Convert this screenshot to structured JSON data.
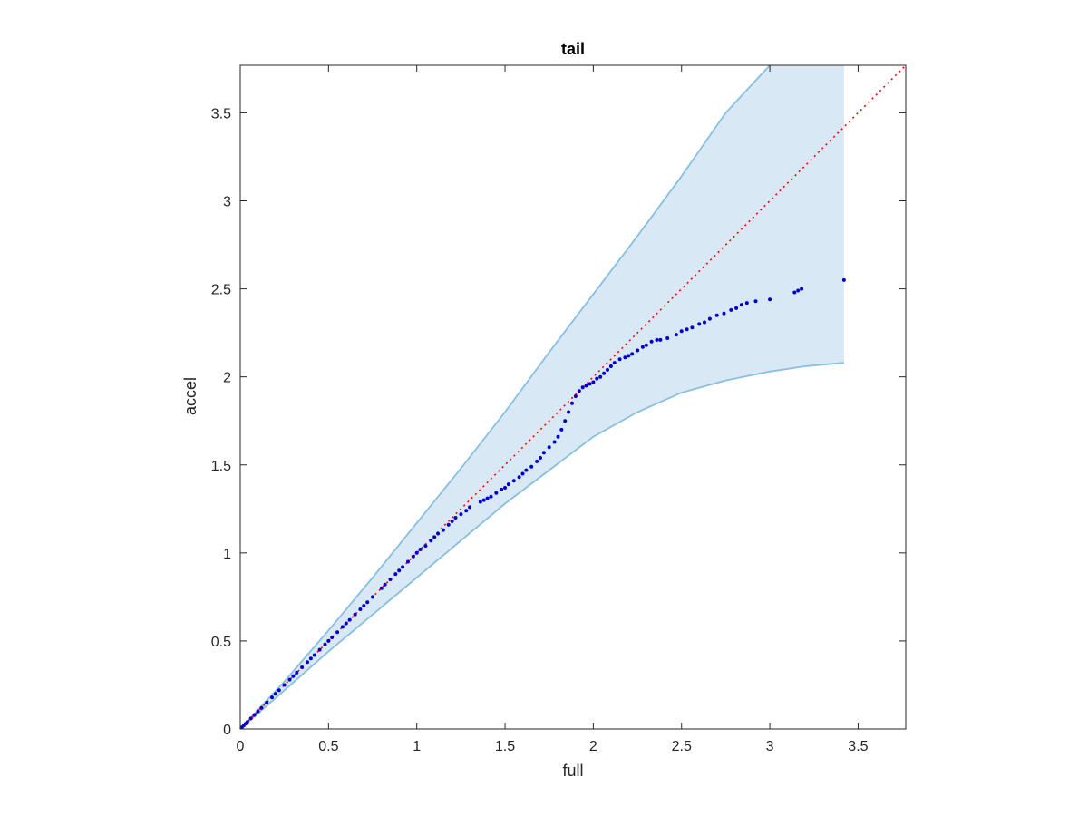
{
  "chart_data": {
    "type": "scatter",
    "title": "tail",
    "xlabel": "full",
    "ylabel": "accel",
    "xlim": [
      0,
      3.77
    ],
    "ylim": [
      0,
      3.77
    ],
    "xticks": [
      0,
      0.5,
      1,
      1.5,
      2,
      2.5,
      3,
      3.5
    ],
    "yticks": [
      0,
      0.5,
      1,
      1.5,
      2,
      2.5,
      3,
      3.5
    ],
    "xtick_labels": [
      "0",
      "0.5",
      "1",
      "1.5",
      "2",
      "2.5",
      "3",
      "3.5"
    ],
    "ytick_labels": [
      "0",
      "0.5",
      "1",
      "1.5",
      "2",
      "2.5",
      "3",
      "3.5"
    ],
    "grid": false,
    "reference_line": {
      "style": "dotted",
      "color": "#ff0000",
      "x": [
        0,
        3.77
      ],
      "y": [
        0,
        3.77
      ]
    },
    "band": {
      "color": "#d8e8f4",
      "edge_color": "#88bfe0",
      "x": [
        0,
        0.25,
        0.5,
        0.75,
        1.0,
        1.25,
        1.5,
        1.75,
        2.0,
        2.25,
        2.5,
        2.75,
        3.0,
        3.2,
        3.42
      ],
      "upper": [
        0,
        0.27,
        0.56,
        0.86,
        1.17,
        1.48,
        1.8,
        2.14,
        2.47,
        2.8,
        3.14,
        3.5,
        3.77,
        3.77,
        3.77
      ],
      "lower": [
        0,
        0.22,
        0.44,
        0.65,
        0.86,
        1.07,
        1.28,
        1.47,
        1.66,
        1.8,
        1.91,
        1.98,
        2.03,
        2.06,
        2.08
      ]
    },
    "series": [
      {
        "color": "#0000cc",
        "x": [
          0.01,
          0.02,
          0.03,
          0.04,
          0.06,
          0.08,
          0.1,
          0.12,
          0.15,
          0.18,
          0.2,
          0.22,
          0.25,
          0.28,
          0.3,
          0.32,
          0.35,
          0.38,
          0.4,
          0.42,
          0.45,
          0.48,
          0.5,
          0.52,
          0.55,
          0.58,
          0.6,
          0.62,
          0.65,
          0.68,
          0.7,
          0.72,
          0.75,
          0.8,
          0.82,
          0.85,
          0.88,
          0.9,
          0.92,
          0.95,
          0.98,
          1.0,
          1.02,
          1.05,
          1.08,
          1.1,
          1.12,
          1.15,
          1.18,
          1.2,
          1.22,
          1.25,
          1.28,
          1.3,
          1.36,
          1.38,
          1.4,
          1.42,
          1.45,
          1.48,
          1.5,
          1.52,
          1.55,
          1.58,
          1.6,
          1.62,
          1.65,
          1.68,
          1.7,
          1.72,
          1.75,
          1.78,
          1.8,
          1.82,
          1.84,
          1.86,
          1.88,
          1.9,
          1.92,
          1.94,
          1.96,
          1.98,
          2.0,
          2.02,
          2.04,
          2.06,
          2.08,
          2.1,
          2.12,
          2.15,
          2.18,
          2.2,
          2.22,
          2.25,
          2.28,
          2.3,
          2.33,
          2.36,
          2.38,
          2.42,
          2.47,
          2.5,
          2.53,
          2.56,
          2.6,
          2.63,
          2.66,
          2.7,
          2.74,
          2.78,
          2.81,
          2.84,
          2.87,
          2.92,
          3.0,
          3.14,
          3.16,
          3.18,
          3.42
        ],
        "y": [
          0.01,
          0.02,
          0.03,
          0.04,
          0.06,
          0.08,
          0.1,
          0.12,
          0.15,
          0.18,
          0.2,
          0.22,
          0.25,
          0.28,
          0.3,
          0.32,
          0.35,
          0.38,
          0.4,
          0.42,
          0.45,
          0.48,
          0.5,
          0.52,
          0.55,
          0.58,
          0.6,
          0.62,
          0.65,
          0.68,
          0.7,
          0.72,
          0.75,
          0.8,
          0.82,
          0.85,
          0.88,
          0.9,
          0.92,
          0.95,
          0.98,
          1.0,
          1.02,
          1.04,
          1.07,
          1.09,
          1.11,
          1.13,
          1.16,
          1.18,
          1.2,
          1.22,
          1.24,
          1.26,
          1.29,
          1.3,
          1.31,
          1.32,
          1.34,
          1.36,
          1.37,
          1.39,
          1.41,
          1.43,
          1.45,
          1.47,
          1.49,
          1.52,
          1.54,
          1.57,
          1.6,
          1.63,
          1.66,
          1.7,
          1.75,
          1.8,
          1.85,
          1.89,
          1.92,
          1.94,
          1.95,
          1.96,
          1.97,
          1.99,
          2.0,
          2.02,
          2.04,
          2.06,
          2.08,
          2.1,
          2.11,
          2.12,
          2.13,
          2.15,
          2.17,
          2.18,
          2.2,
          2.21,
          2.21,
          2.22,
          2.24,
          2.26,
          2.27,
          2.28,
          2.3,
          2.31,
          2.33,
          2.35,
          2.36,
          2.38,
          2.39,
          2.41,
          2.42,
          2.43,
          2.44,
          2.48,
          2.49,
          2.5,
          2.55
        ]
      }
    ]
  }
}
